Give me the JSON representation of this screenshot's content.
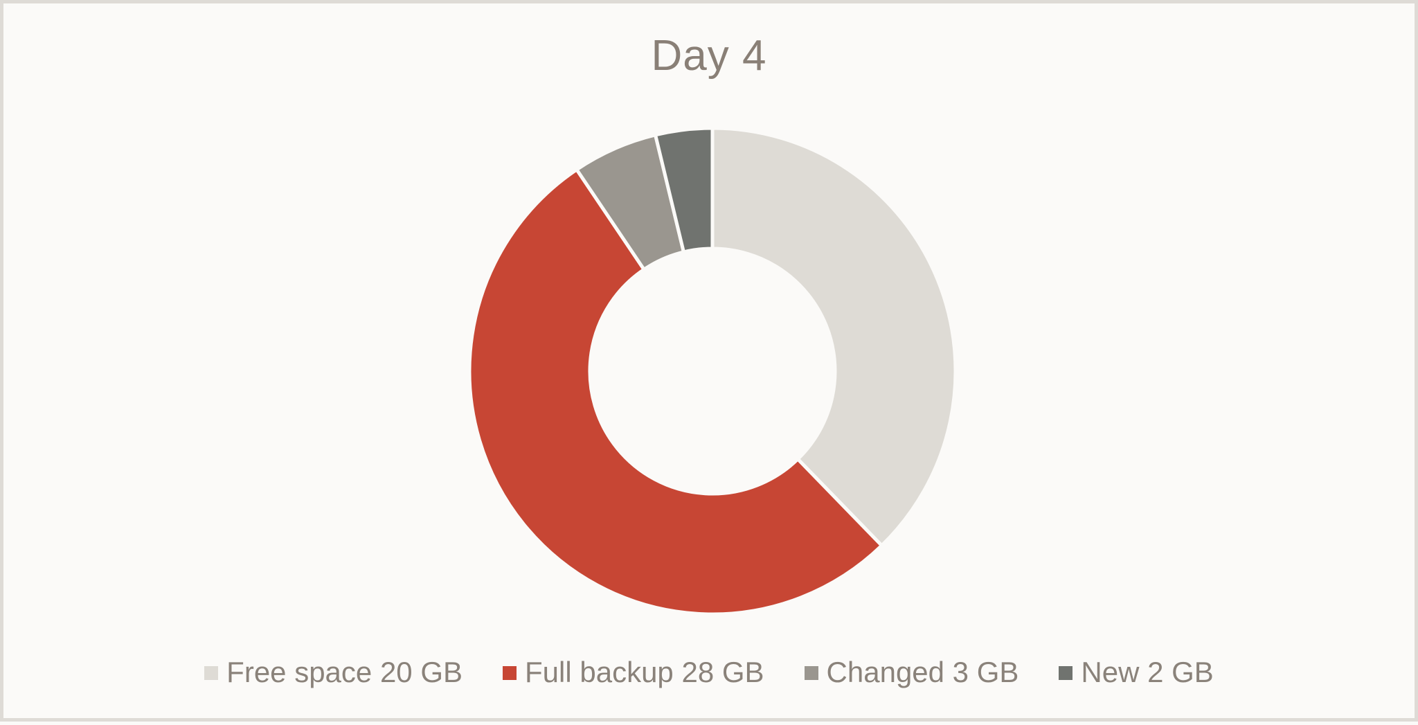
{
  "title": "Day 4",
  "colors": {
    "background": "#FBFAF8",
    "frame_border": "#DEDBD6",
    "title_text": "#897F76",
    "legend_text": "#8A827A",
    "slice_gap": "#FBFAF8"
  },
  "chart_data": {
    "type": "pie",
    "subtype": "donut",
    "title": "Day 4",
    "unit": "GB",
    "total": 53,
    "start_angle_deg": 0,
    "direction": "clockwise",
    "inner_radius_ratio": 0.505,
    "grid": false,
    "legend_position": "bottom",
    "segments": [
      {
        "label": "Free space",
        "value": 20,
        "color": "#DEDBD5",
        "legend_label": "Free space 20 GB"
      },
      {
        "label": "Full backup",
        "value": 28,
        "color": "#C74634",
        "legend_label": "Full backup 28 GB"
      },
      {
        "label": "Changed",
        "value": 3,
        "color": "#9A968F",
        "legend_label": "Changed 3 GB"
      },
      {
        "label": "New",
        "value": 2,
        "color": "#70736F",
        "legend_label": "New 2 GB"
      }
    ]
  }
}
